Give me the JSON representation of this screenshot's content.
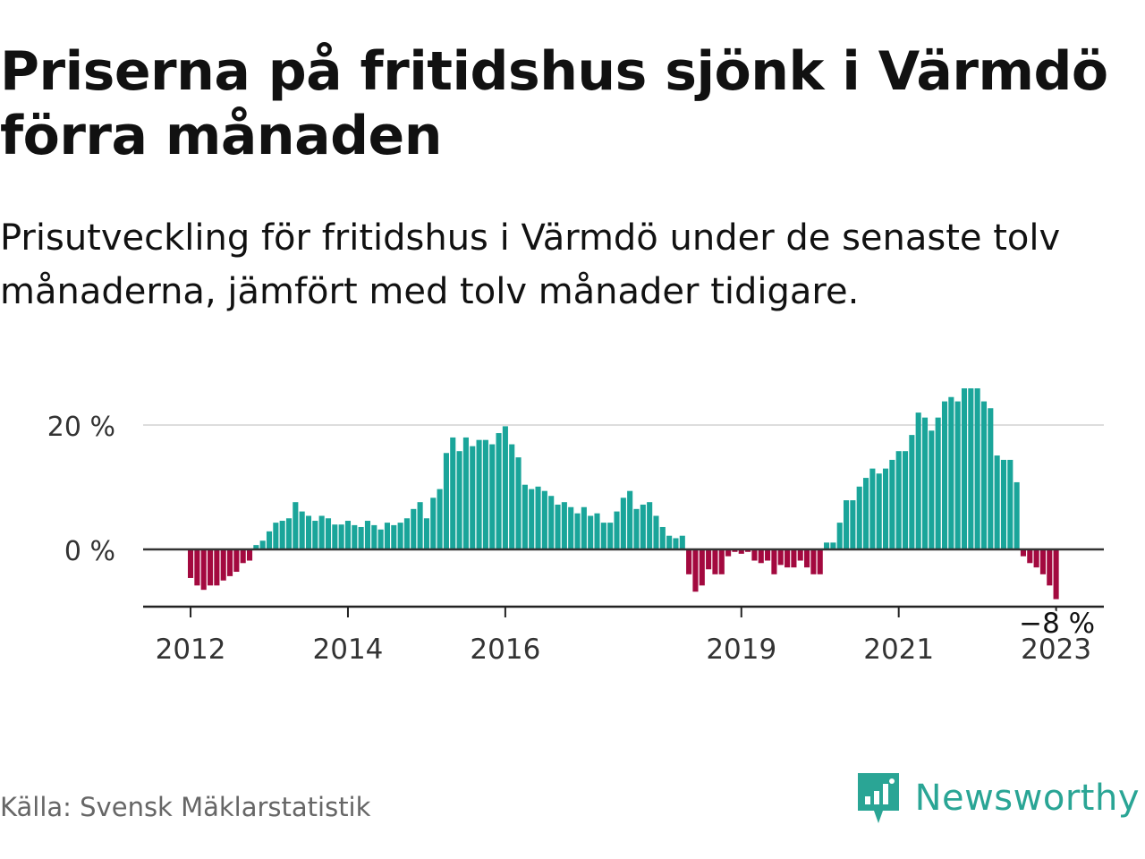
{
  "title": "Priserna på fritidshus sjönk i Värmdö förra månaden",
  "subtitle": "Prisutveckling för fritidshus i Värmdö under de senaste tolv månaderna, jämfört med tolv månader tidigare.",
  "source": "Källa: Svensk Mäklarstatistik",
  "brand": {
    "name": "Newsworthy",
    "icon": "newsworthy-logo-icon"
  },
  "colors": {
    "positive": "#1aa59a",
    "negative": "#a3093f",
    "text": "#111111",
    "grid": "#dddddd",
    "axis": "#333333",
    "source": "#666666",
    "brand": "#2aa595"
  },
  "chart_data": {
    "type": "bar",
    "ylim": [
      -9,
      27
    ],
    "y_ticks": [
      0,
      20
    ],
    "y_tick_labels": [
      "0 %",
      "20 %"
    ],
    "grid": true,
    "x_ticks": [
      "2012",
      "2014",
      "2016",
      "2019",
      "2021",
      "2023"
    ],
    "annotation": "−8 %",
    "values": [
      -4.6,
      -5.8,
      -6.5,
      -5.8,
      -5.8,
      -5.0,
      -4.3,
      -3.6,
      -2.2,
      -1.8,
      0.7,
      1.4,
      2.9,
      4.3,
      4.6,
      5.0,
      7.6,
      6.1,
      5.4,
      4.6,
      5.4,
      5.0,
      4.0,
      4.0,
      4.6,
      3.9,
      3.6,
      4.6,
      3.9,
      3.2,
      4.3,
      3.9,
      4.3,
      5.0,
      6.5,
      7.6,
      5.0,
      8.3,
      9.7,
      15.5,
      18.0,
      15.8,
      18.0,
      16.6,
      17.6,
      17.6,
      16.9,
      18.7,
      19.8,
      16.9,
      14.8,
      10.4,
      9.7,
      10.1,
      9.4,
      8.6,
      7.2,
      7.6,
      6.8,
      5.8,
      6.8,
      5.4,
      5.8,
      4.3,
      4.3,
      6.1,
      8.3,
      9.4,
      6.5,
      7.2,
      7.6,
      5.4,
      3.6,
      2.2,
      1.8,
      2.2,
      -4.0,
      -6.8,
      -5.8,
      -3.2,
      -4.0,
      -4.0,
      -1.1,
      -0.4,
      -0.7,
      -0.4,
      -1.8,
      -2.2,
      -1.8,
      -4.0,
      -2.5,
      -2.9,
      -2.9,
      -1.8,
      -2.9,
      -4.0,
      -4.0,
      1.1,
      1.1,
      4.3,
      7.9,
      7.9,
      10.1,
      11.5,
      13.0,
      12.2,
      13.0,
      14.4,
      15.8,
      15.8,
      18.4,
      22.0,
      21.2,
      19.1,
      21.2,
      23.8,
      24.5,
      23.8,
      25.9,
      25.9,
      25.9,
      23.8,
      22.7,
      15.1,
      14.4,
      14.4,
      10.8,
      -1.1,
      -2.2,
      -2.9,
      -4.0,
      -5.8,
      -8.0
    ]
  }
}
